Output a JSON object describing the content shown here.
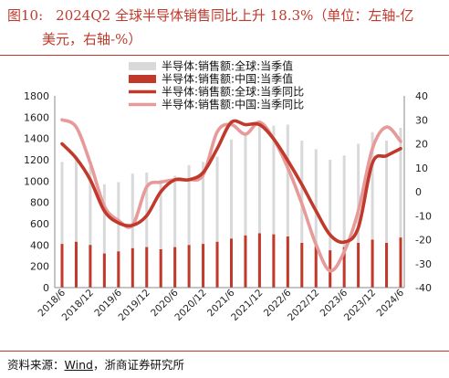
{
  "title": {
    "number": "图10:",
    "line1": "2024Q2 全球半导体销售同比上升 18.3%（单位：左轴-亿",
    "line2": "美元，右轴-%）"
  },
  "source": {
    "prefix": "资料来源：",
    "wind": "Wind",
    "suffix": "，浙商证券研究所"
  },
  "colors": {
    "global_bar": "#d9d9d9",
    "china_bar": "#c0392b",
    "global_yoy": "#c0392b",
    "china_yoy": "#e69a9a",
    "title": "#c0392b"
  },
  "chart_data": {
    "type": "bar+line",
    "legend": [
      "半导体:销售额:全球:当季值",
      "半导体:销售额:中国:当季值",
      "半导体:销售额:全球:当季同比",
      "半导体:销售额:中国:当季同比"
    ],
    "legend_placement": "top-center",
    "left_axis": {
      "min": 0,
      "max": 1800,
      "ticks": [
        0,
        200,
        400,
        600,
        800,
        1000,
        1200,
        1400,
        1600,
        1800
      ]
    },
    "right_axis": {
      "min": -40,
      "max": 40,
      "ticks": [
        -40,
        -30,
        -20,
        -10,
        0,
        10,
        20,
        30,
        40
      ]
    },
    "x_tick_labels": [
      "2018/6",
      "2018/12",
      "2019/6",
      "2019/12",
      "2020/6",
      "2020/12",
      "2021/6",
      "2021/12",
      "2022/6",
      "2022/12",
      "2023/6",
      "2023/12",
      "2024/6"
    ],
    "categories": [
      "2018/6",
      "2018/9",
      "2018/12",
      "2019/3",
      "2019/6",
      "2019/9",
      "2019/12",
      "2020/3",
      "2020/6",
      "2020/9",
      "2020/12",
      "2021/3",
      "2021/6",
      "2021/9",
      "2021/12",
      "2022/3",
      "2022/6",
      "2022/9",
      "2022/12",
      "2023/3",
      "2023/6",
      "2023/9",
      "2023/12",
      "2024/3",
      "2024/6"
    ],
    "series": [
      {
        "name": "半导体:销售额:全球:当季值",
        "kind": "bar",
        "values": [
          1180,
          1230,
          1140,
          970,
          990,
          1070,
          1080,
          1010,
          1050,
          1150,
          1180,
          1230,
          1390,
          1450,
          1520,
          1520,
          1530,
          1380,
          1300,
          1200,
          1240,
          1350,
          1460,
          1380,
          1500
        ]
      },
      {
        "name": "半导体:销售额:中国:当季值",
        "kind": "bar",
        "values": [
          410,
          430,
          400,
          320,
          340,
          370,
          380,
          360,
          380,
          400,
          410,
          430,
          460,
          490,
          510,
          500,
          480,
          420,
          390,
          350,
          380,
          420,
          450,
          420,
          470
        ]
      },
      {
        "name": "半导体:销售额:全球:当季同比",
        "kind": "line",
        "axis": "right",
        "values": [
          20,
          14,
          5,
          -8,
          -13,
          -14,
          -10,
          0,
          5,
          5,
          8,
          18,
          29,
          28,
          28,
          22,
          13,
          3,
          -8,
          -18,
          -21,
          -15,
          12,
          15,
          18
        ]
      },
      {
        "name": "半导体:销售额:中国:当季同比",
        "kind": "line",
        "axis": "right",
        "values": [
          30,
          27,
          12,
          -6,
          -12,
          -14,
          2,
          4,
          5,
          5,
          7,
          25,
          28,
          24,
          29,
          22,
          10,
          -5,
          -22,
          -33,
          -25,
          -8,
          18,
          27,
          21
        ]
      }
    ]
  }
}
